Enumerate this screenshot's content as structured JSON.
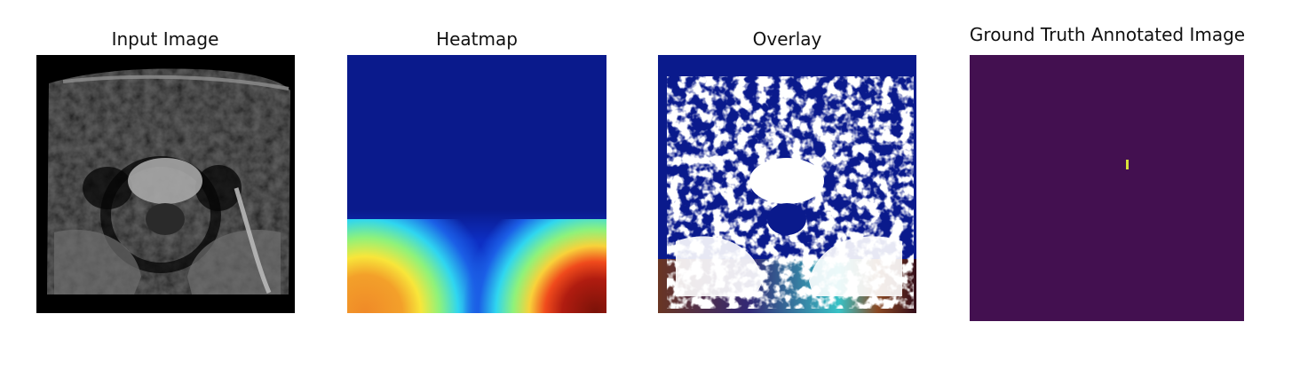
{
  "panels": {
    "input": {
      "title": "Input Image"
    },
    "heatmap": {
      "title": "Heatmap"
    },
    "overlay": {
      "title": "Overlay"
    },
    "ground_truth": {
      "title": "Ground Truth Annotated Image"
    }
  },
  "colors": {
    "page_background": "#ffffff",
    "mri_background": "#000000",
    "heatmap_base": "#0a1a8c",
    "heatmap_hot": "#7a1208",
    "overlay_base": "#0a1a8c",
    "ground_truth_background": "#431050",
    "ground_truth_marker": "#d8e03a"
  }
}
